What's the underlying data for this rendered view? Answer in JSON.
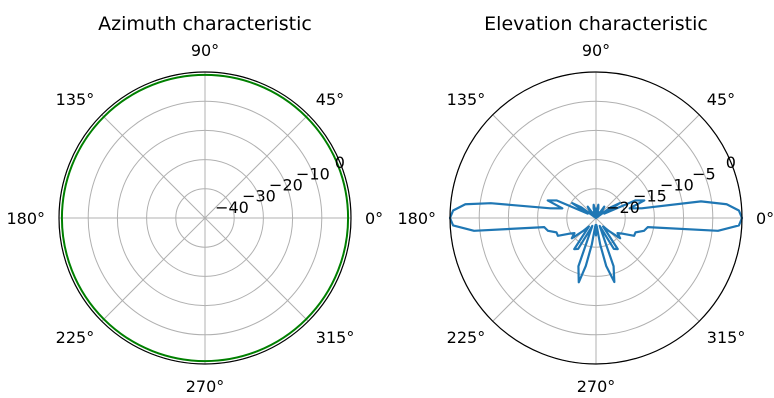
{
  "colors": {
    "grid": "#b0b0b0",
    "frame": "#000000",
    "azimuth_line": "#008000",
    "elevation_line": "#1f77b4",
    "background": "#ffffff"
  },
  "chart_data": [
    {
      "type": "polar-line",
      "title": "Azimuth characteristic",
      "angle_ticks_deg": [
        0,
        45,
        90,
        135,
        180,
        225,
        270,
        315
      ],
      "angle_tick_labels": [
        "0°",
        "45°",
        "90°",
        "135°",
        "180°",
        "225°",
        "270°",
        "315°"
      ],
      "rlim": [
        -50,
        0
      ],
      "r_ticks": [
        -40,
        -30,
        -20,
        -10,
        0
      ],
      "r_tick_labels": [
        "−40",
        "−30",
        "−20",
        "−10",
        "0"
      ],
      "grid": true,
      "series": [
        {
          "theta_deg": [
            0,
            360
          ],
          "r": [
            -1,
            -1
          ]
        }
      ]
    },
    {
      "type": "polar-line",
      "title": "Elevation characteristic",
      "angle_ticks_deg": [
        0,
        45,
        90,
        135,
        180,
        225,
        270,
        315
      ],
      "angle_tick_labels": [
        "0°",
        "45°",
        "90°",
        "135°",
        "180°",
        "225°",
        "270°",
        "315°"
      ],
      "rlim": [
        -25,
        0
      ],
      "r_ticks": [
        -20,
        -15,
        -10,
        -5,
        0
      ],
      "r_tick_labels": [
        "−20",
        "−15",
        "−10",
        "−5",
        "0"
      ],
      "grid": true,
      "series": [
        {
          "theta_deg": [
            0,
            3,
            6,
            9,
            12,
            16,
            20,
            24,
            28,
            32,
            36,
            42,
            48,
            54,
            60,
            66,
            72,
            76,
            80,
            84,
            88,
            90,
            92,
            96,
            100,
            104,
            108,
            114,
            120,
            126,
            132,
            138,
            144,
            148,
            152,
            156,
            160,
            164,
            168,
            172,
            174,
            177,
            180,
            183,
            186,
            190,
            195,
            200,
            205,
            210,
            215,
            220,
            225,
            230,
            235,
            240,
            245,
            250,
            255,
            258,
            261,
            264,
            267,
            270,
            273,
            276,
            279,
            282,
            286,
            290,
            295,
            300,
            305,
            310,
            315,
            320,
            325,
            330,
            335,
            340,
            345,
            350,
            354,
            357,
            360
          ],
          "r": [
            0,
            -0.5,
            -2.5,
            -6.8,
            -17,
            -19,
            -16.2,
            -17.6,
            -23.4,
            -20.2,
            -21.9,
            -25,
            -23.4,
            -22.6,
            -25,
            -23.9,
            -25,
            -23.3,
            -22.7,
            -24,
            -24.4,
            -23.4,
            -24.4,
            -24,
            -22.7,
            -23.3,
            -25,
            -23.9,
            -25,
            -22.6,
            -23.4,
            -25,
            -21.9,
            -20.2,
            -23.4,
            -17.6,
            -16.2,
            -19,
            -17,
            -6.8,
            -2.5,
            -0.5,
            0,
            -0.5,
            -4,
            -16,
            -16.5,
            -17.8,
            -17.8,
            -19.6,
            -20.5,
            -19.6,
            -21.8,
            -23.1,
            -18.5,
            -18.9,
            -23.5,
            -16.2,
            -13.6,
            -16.6,
            -20.4,
            -23.4,
            -23.8,
            -22,
            -23.8,
            -23.4,
            -20.4,
            -16.6,
            -13.6,
            -16.2,
            -23.5,
            -18.9,
            -18.5,
            -23.1,
            -21.8,
            -19.6,
            -20.5,
            -19.6,
            -17.8,
            -17.8,
            -16.5,
            -16,
            -4,
            -0.5,
            0
          ]
        }
      ]
    }
  ]
}
